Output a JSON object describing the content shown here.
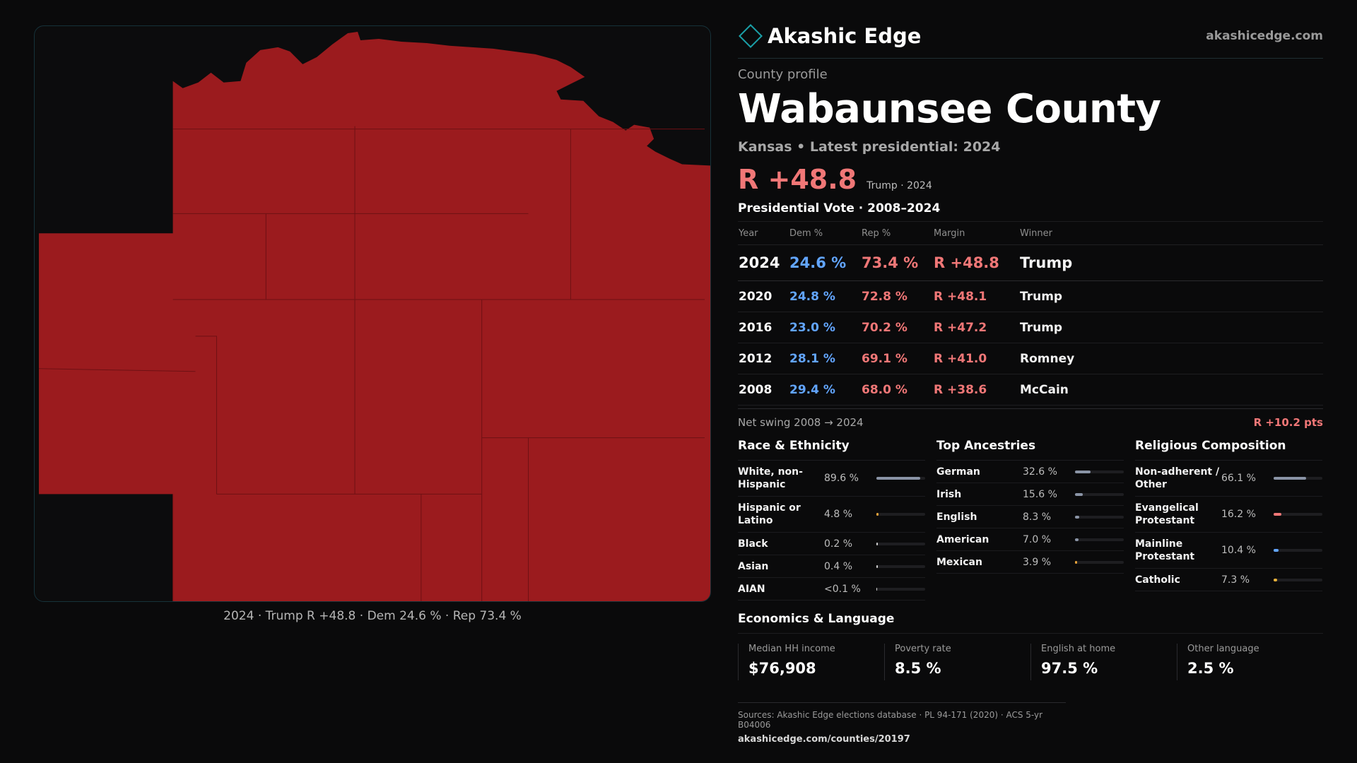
{
  "brand": {
    "name": "Akashic Edge",
    "site": "akashicedge.com"
  },
  "profile": {
    "kicker": "County profile",
    "title": "Wabaunsee County",
    "subtitle": "Kansas • Latest presidential: 2024",
    "margin": "R +48.8",
    "margin_note": "Trump · 2024"
  },
  "map": {
    "caption": "2024 · Trump R +48.8 · Dem 24.6 % · Rep 73.4 %",
    "fill_color": "#9b1b1e",
    "line_color": "#6e1114"
  },
  "votes": {
    "heading": "Presidential Vote · 2008–2024",
    "columns": [
      "Year",
      "Dem %",
      "Rep %",
      "Margin",
      "Winner"
    ],
    "rows": [
      {
        "year": "2024",
        "dem": "24.6 %",
        "rep": "73.4 %",
        "margin": "R +48.8",
        "winner": "Trump"
      },
      {
        "year": "2020",
        "dem": "24.8 %",
        "rep": "72.8 %",
        "margin": "R +48.1",
        "winner": "Trump"
      },
      {
        "year": "2016",
        "dem": "23.0 %",
        "rep": "70.2 %",
        "margin": "R +47.2",
        "winner": "Trump"
      },
      {
        "year": "2012",
        "dem": "28.1 %",
        "rep": "69.1 %",
        "margin": "R +41.0",
        "winner": "Romney"
      },
      {
        "year": "2008",
        "dem": "29.4 %",
        "rep": "68.0 %",
        "margin": "R +38.6",
        "winner": "McCain"
      }
    ],
    "swing_label": "Net swing 2008 → 2024",
    "swing_value": "R +10.2 pts"
  },
  "race": {
    "heading": "Race & Ethnicity",
    "items": [
      {
        "label": "White, non-Hispanic",
        "value": "89.6 %",
        "fraction": 0.896,
        "color": "#8a94a6"
      },
      {
        "label": "Hispanic or Latino",
        "value": "4.8 %",
        "fraction": 0.048,
        "color": "#e8a33a"
      },
      {
        "label": "Black",
        "value": "0.2 %",
        "fraction": 0.01,
        "color": "#cfcfcf"
      },
      {
        "label": "Asian",
        "value": "0.4 %",
        "fraction": 0.01,
        "color": "#cfcfcf"
      },
      {
        "label": "AIAN",
        "value": "<0.1 %",
        "fraction": 0.0,
        "color": "#cfcfcf"
      }
    ]
  },
  "ancestry": {
    "heading": "Top Ancestries",
    "items": [
      {
        "label": "German",
        "value": "32.6 %",
        "fraction": 0.326,
        "color": "#8a94a6"
      },
      {
        "label": "Irish",
        "value": "15.6 %",
        "fraction": 0.156,
        "color": "#8a94a6"
      },
      {
        "label": "English",
        "value": "8.3 %",
        "fraction": 0.083,
        "color": "#8a94a6"
      },
      {
        "label": "American",
        "value": "7.0 %",
        "fraction": 0.07,
        "color": "#8a94a6"
      },
      {
        "label": "Mexican",
        "value": "3.9 %",
        "fraction": 0.039,
        "color": "#e8a33a"
      }
    ]
  },
  "religion": {
    "heading": "Religious Composition",
    "items": [
      {
        "label": "Non-adherent / Other",
        "value": "66.1 %",
        "fraction": 0.661,
        "color": "#8a94a6"
      },
      {
        "label": "Evangelical Protestant",
        "value": "16.2 %",
        "fraction": 0.162,
        "color": "#f07777"
      },
      {
        "label": "Mainline Protestant",
        "value": "10.4 %",
        "fraction": 0.104,
        "color": "#62a5ff"
      },
      {
        "label": "Catholic",
        "value": "7.3 %",
        "fraction": 0.073,
        "color": "#e8b23a"
      }
    ]
  },
  "economics": {
    "heading": "Economics & Language",
    "items": [
      {
        "label": "Median HH income",
        "value": "$76,908"
      },
      {
        "label": "Poverty rate",
        "value": "8.5 %"
      },
      {
        "label": "English at home",
        "value": "97.5 %"
      },
      {
        "label": "Other language",
        "value": "2.5 %"
      }
    ]
  },
  "sources": {
    "line": "Sources: Akashic Edge elections database · PL 94-171 (2020) · ACS 5-yr B04006",
    "url": "akashicedge.com/counties/20197"
  }
}
